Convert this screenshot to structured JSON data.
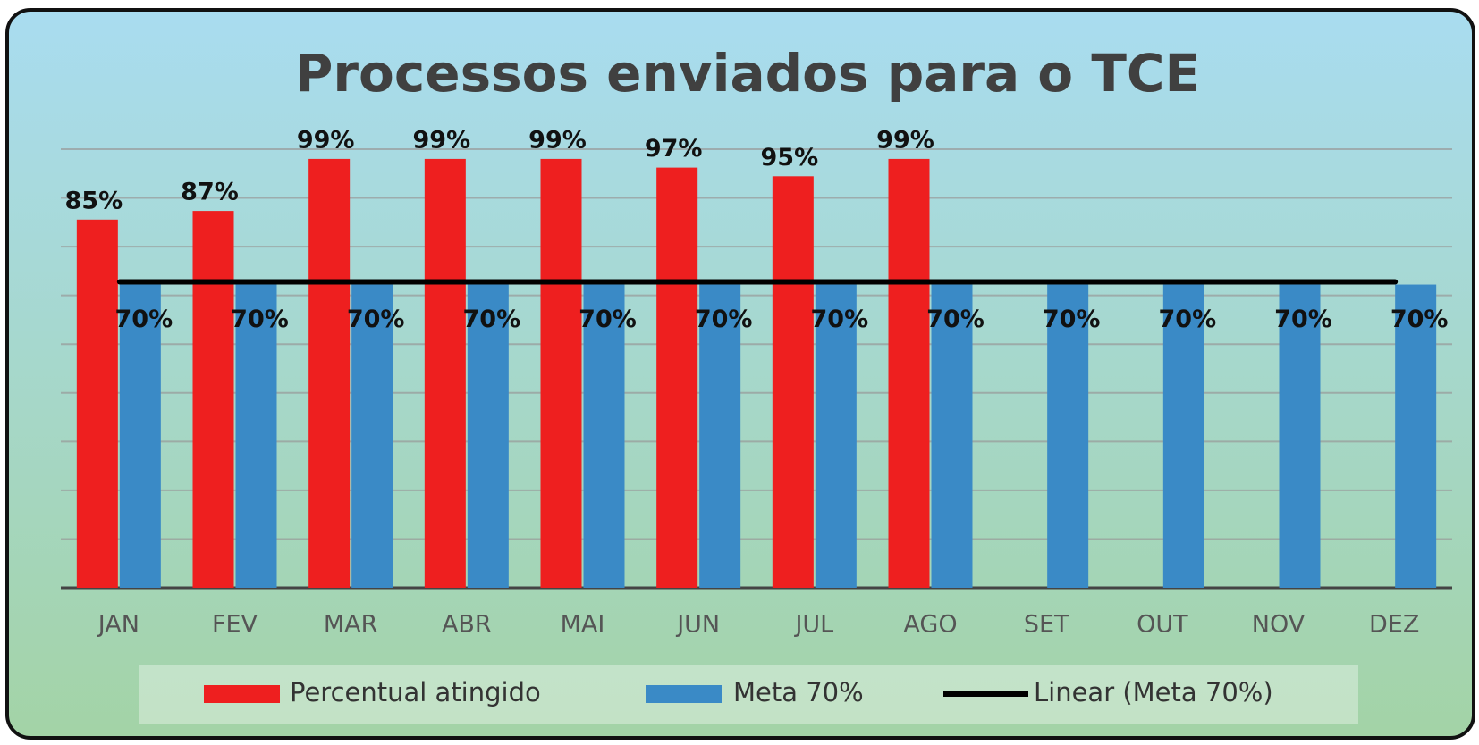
{
  "chart_data": {
    "type": "bar",
    "title": "Processos enviados para o TCE",
    "categories": [
      "JAN",
      "FEV",
      "MAR",
      "ABR",
      "MAI",
      "JUN",
      "JUL",
      "AGO",
      "SET",
      "OUT",
      "NOV",
      "DEZ"
    ],
    "series": [
      {
        "name": "Percentual atingido",
        "color": "#ee1f1f",
        "values": [
          85,
          87,
          99,
          99,
          99,
          97,
          95,
          99,
          null,
          null,
          null,
          null
        ],
        "value_labels": [
          "85%",
          "87%",
          "99%",
          "99%",
          "99%",
          "97%",
          "95%",
          "99%",
          null,
          null,
          null,
          null
        ]
      },
      {
        "name": "Meta 70%",
        "color": "#3a8ac6",
        "values": [
          70,
          70,
          70,
          70,
          70,
          70,
          70,
          70,
          70,
          70,
          70,
          70
        ],
        "value_labels": [
          "70%",
          "70%",
          "70%",
          "70%",
          "70%",
          "70%",
          "70%",
          "70%",
          "70%",
          "70%",
          "70%",
          "70%"
        ]
      }
    ],
    "trendline": {
      "name": "Linear (Meta 70%)",
      "color": "#000000",
      "series": 1
    },
    "ylim": [
      0,
      101.25
    ],
    "yticks": [
      0,
      11.25,
      22.5,
      33.75,
      45,
      56.25,
      67.5,
      78.75,
      90,
      101.25
    ],
    "grid": true,
    "legend": "bottom"
  }
}
